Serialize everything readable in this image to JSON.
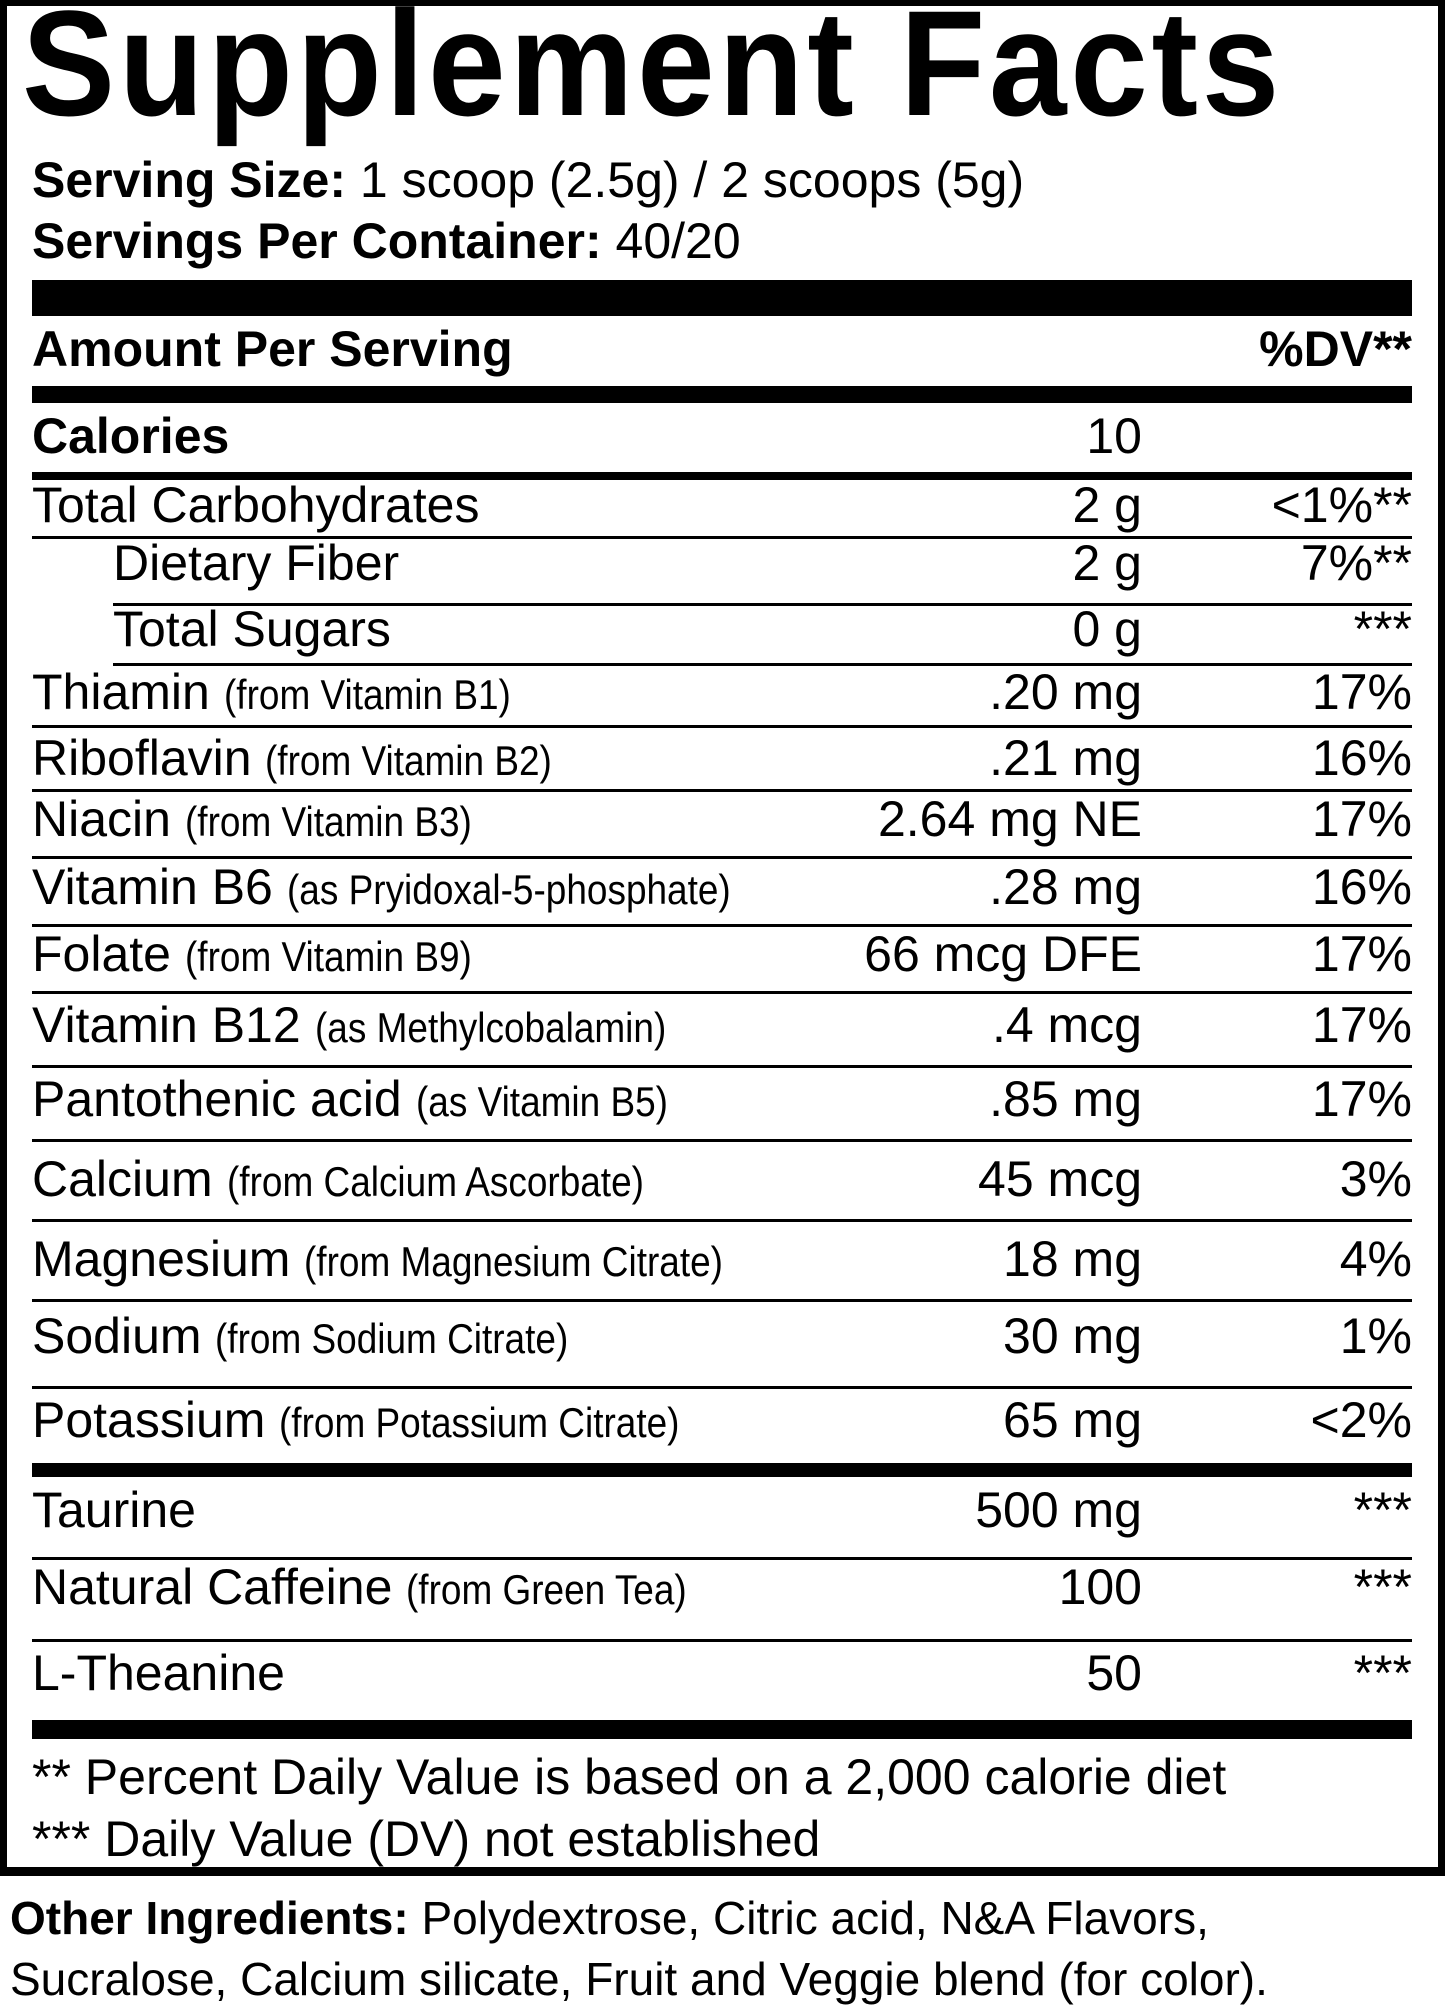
{
  "title": "Supplement Facts",
  "serving_size": {
    "label": "Serving Size:",
    "value": "1 scoop (2.5g) / 2 scoops (5g)"
  },
  "servings_per_container": {
    "label": "Servings Per Container:",
    "value": "40/20"
  },
  "header": {
    "amount_per_serving": "Amount Per Serving",
    "dv": "%DV**"
  },
  "calories": {
    "label": "Calories",
    "amount": "10"
  },
  "nutrients": [
    {
      "name": "Total Carbohydrates",
      "source": "",
      "amount": "2 g",
      "dv": "<1%**",
      "indent": false
    },
    {
      "name": "Dietary Fiber",
      "source": "",
      "amount": "2 g",
      "dv": "7%**",
      "indent": true
    },
    {
      "name": "Total Sugars",
      "source": "",
      "amount": "0 g",
      "dv": "***",
      "indent": true
    },
    {
      "name": "Thiamin",
      "source": "(from Vitamin B1)",
      "amount": ".20 mg",
      "dv": "17%",
      "indent": false
    },
    {
      "name": "Riboflavin",
      "source": "(from Vitamin B2)",
      "amount": ".21 mg",
      "dv": "16%",
      "indent": false
    },
    {
      "name": "Niacin",
      "source": "(from Vitamin B3)",
      "amount": "2.64 mg NE",
      "dv": "17%",
      "indent": false
    },
    {
      "name": "Vitamin B6",
      "source": "(as Pryidoxal-5-phosphate)",
      "amount": ".28 mg",
      "dv": "16%",
      "indent": false
    },
    {
      "name": "Folate",
      "source": "(from Vitamin B9)",
      "amount": "66 mcg DFE",
      "dv": "17%",
      "indent": false
    },
    {
      "name": "Vitamin B12",
      "source": "(as Methylcobalamin)",
      "amount": ".4 mcg",
      "dv": "17%",
      "indent": false
    },
    {
      "name": "Pantothenic acid",
      "source": "(as Vitamin B5)",
      "amount": ".85 mg",
      "dv": "17%",
      "indent": false
    },
    {
      "name": "Calcium",
      "source": "(from Calcium Ascorbate)",
      "amount": "45 mcg",
      "dv": "3%",
      "indent": false
    },
    {
      "name": "Magnesium",
      "source": "(from Magnesium Citrate)",
      "amount": "18 mg",
      "dv": "4%",
      "indent": false
    },
    {
      "name": "Sodium",
      "source": "(from Sodium Citrate)",
      "amount": "30 mg",
      "dv": "1%",
      "indent": false
    },
    {
      "name": "Potassium",
      "source": "(from Potassium Citrate)",
      "amount": "65 mg",
      "dv": "<2%",
      "indent": false
    }
  ],
  "other_actives": [
    {
      "name": "Taurine",
      "source": "",
      "amount": "500 mg",
      "dv": "***"
    },
    {
      "name": "Natural Caffeine",
      "source": "(from Green Tea)",
      "amount": "100",
      "dv": "***"
    },
    {
      "name": "L-Theanine",
      "source": "",
      "amount": "50",
      "dv": "***"
    }
  ],
  "footnotes": [
    "** Percent Daily Value is based on a 2,000 calorie diet",
    "*** Daily Value (DV) not established"
  ],
  "other_ingredients": {
    "label": "Other Ingredients:",
    "line1": "Polydextrose, Citric acid, N&A Flavors,",
    "line2": "Sucralose, Calcium silicate, Fruit and Veggie blend (for color)."
  }
}
